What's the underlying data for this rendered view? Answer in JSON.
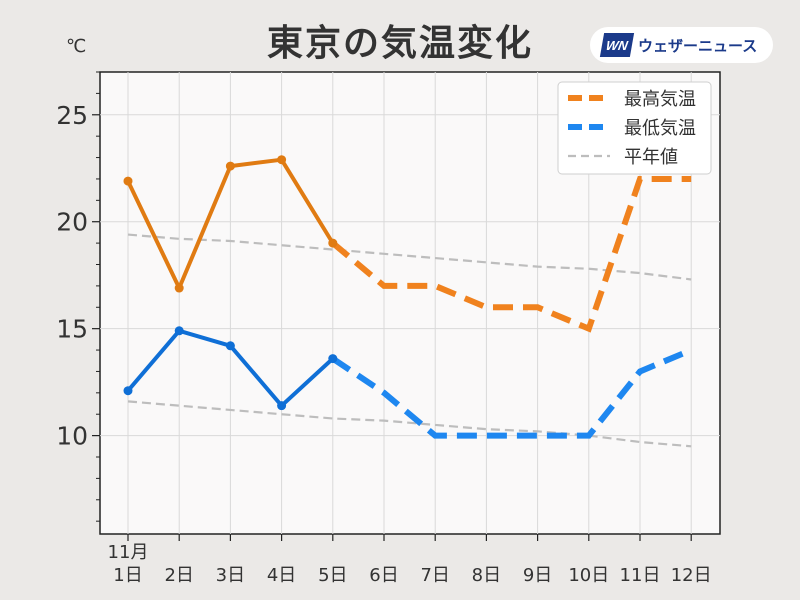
{
  "header": {
    "title": "東京の気温変化",
    "brand_mark": "WN",
    "brand_name": "ウェザーニュース"
  },
  "chart_data": {
    "type": "line",
    "title": "東京の気温変化",
    "ylabel": "℃",
    "xlabel": "",
    "month_label": "11月",
    "categories": [
      "1日",
      "2日",
      "3日",
      "4日",
      "5日",
      "6日",
      "7日",
      "8日",
      "9日",
      "10日",
      "11日",
      "12日"
    ],
    "ylim": [
      5.4,
      27
    ],
    "yticks": [
      10,
      15,
      20,
      25
    ],
    "grid": true,
    "legend_position": "top-right",
    "series": [
      {
        "name": "最高気温",
        "color": "#e07b12",
        "forecast_color": "#f0821e",
        "values": [
          21.9,
          16.9,
          22.6,
          22.9,
          19.0,
          17,
          17,
          16,
          16,
          15,
          22,
          22
        ],
        "observed_until_index": 4
      },
      {
        "name": "最低気温",
        "color": "#0f6fd6",
        "forecast_color": "#1e87f0",
        "values": [
          12.1,
          14.9,
          14.2,
          11.4,
          13.6,
          12,
          10,
          10,
          10,
          10,
          13,
          14
        ],
        "observed_until_index": 4
      },
      {
        "name": "平年値",
        "color": "#bdbdbd",
        "style": "dashed",
        "segments": [
          [
            19.4,
            19.2,
            19.1,
            18.9,
            18.7,
            18.5,
            18.3,
            18.1,
            17.9,
            17.8,
            17.6,
            17.3
          ],
          [
            11.6,
            11.4,
            11.2,
            11.0,
            10.8,
            10.7,
            10.5,
            10.3,
            10.2,
            10.0,
            9.7,
            9.5
          ]
        ]
      }
    ]
  }
}
